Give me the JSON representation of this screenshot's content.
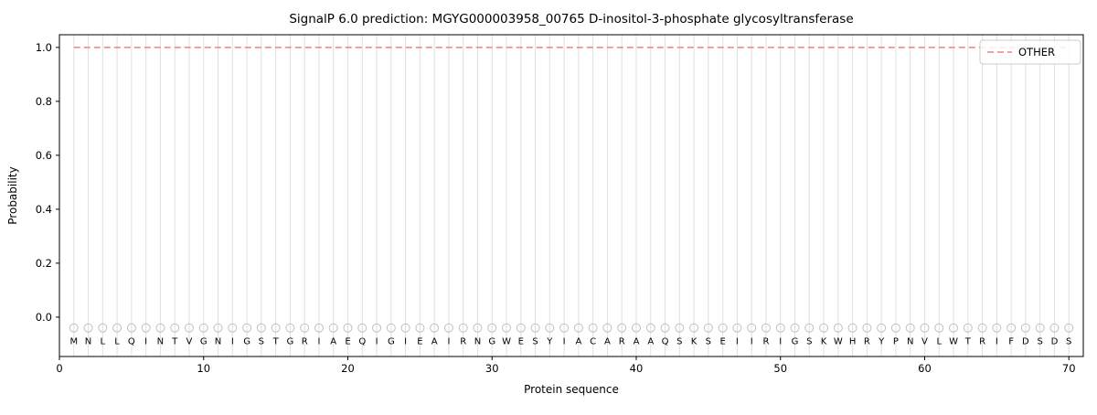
{
  "chart_data": {
    "type": "line",
    "title": "SignalP 6.0 prediction: MGYG000003958_00765 D-inositol-3-phosphate glycosyltransferase",
    "xlabel": "Protein sequence",
    "ylabel": "Probability",
    "xlim": [
      0,
      71
    ],
    "ylim": [
      -0.146,
      1.047
    ],
    "xticks": [
      0,
      10,
      20,
      30,
      40,
      50,
      60,
      70
    ],
    "yticks": [
      0.0,
      0.2,
      0.4,
      0.6,
      0.8,
      1.0
    ],
    "grid": "vertical-line-per-residue",
    "grid_color": "#e0e0e0",
    "sequence": "MNLLQINTVGNIGSTGRIAEQIGIEAIRNGWESYIACARAAQSKSEIIRIGSKWHRYPNVLWTRIFDSDS",
    "residue_marker": {
      "shape": "open-circle",
      "y": -0.04,
      "color": "#c0c0c0"
    },
    "series": [
      {
        "name": "OTHER",
        "color": "#f08080",
        "linestyle": "dashed",
        "x_start": 1,
        "x_end": 70,
        "y_constant": 1.0
      }
    ],
    "legend": {
      "position": "upper-right",
      "entries": [
        {
          "label": "OTHER",
          "color": "#f08080",
          "linestyle": "dashed"
        }
      ]
    }
  }
}
